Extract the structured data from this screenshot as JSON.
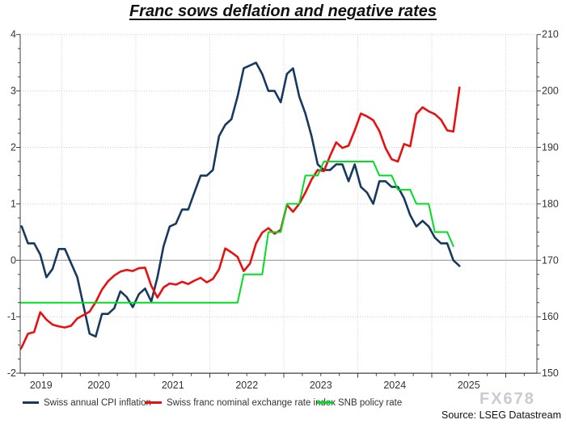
{
  "title": "Franc sows deflation and negative rates",
  "watermark": "FX678",
  "source_note": "Source: LSEG Datastream",
  "colors": {
    "cpi_line": "#17395f",
    "fx_line": "#e81010",
    "policy_line": "#00dd22",
    "gridline": "#cccccc",
    "zero_line": "#8c8c8c",
    "axis": "#404040",
    "tick_label": "#333333"
  },
  "chart_data": {
    "type": "line",
    "title": "Franc sows deflation and negative rates",
    "x_axis": {
      "year_labels": [
        "2019",
        "2020",
        "2021",
        "2022",
        "2023",
        "2024",
        "2025"
      ],
      "range_years": [
        2019.45,
        2026.45
      ]
    },
    "left_axis": {
      "range": [
        -2,
        4
      ],
      "tick_labels": [
        "4",
        "3",
        "2",
        "1",
        "0",
        "-1",
        "-2"
      ],
      "minor_step": 0.25
    },
    "right_axis": {
      "range": [
        150,
        210
      ],
      "tick_labels": [
        "210",
        "200",
        "190",
        "180",
        "170",
        "160",
        "150"
      ],
      "minor_step": 2.5
    },
    "grid": {
      "horizontal_dotted_at": [
        4,
        3,
        2,
        1,
        -1
      ],
      "vertical_dotted_years": [
        2020,
        2021,
        2022,
        2023,
        2024,
        2025,
        2026
      ],
      "solid_zero_line_at": 0
    },
    "legend_position": "bottom",
    "months": [
      "2019-05",
      "2019-06",
      "2019-07",
      "2019-08",
      "2019-09",
      "2019-10",
      "2019-11",
      "2019-12",
      "2020-01",
      "2020-02",
      "2020-03",
      "2020-04",
      "2020-05",
      "2020-06",
      "2020-07",
      "2020-08",
      "2020-09",
      "2020-10",
      "2020-11",
      "2020-12",
      "2021-01",
      "2021-02",
      "2021-03",
      "2021-04",
      "2021-05",
      "2021-06",
      "2021-07",
      "2021-08",
      "2021-09",
      "2021-10",
      "2021-11",
      "2021-12",
      "2022-01",
      "2022-02",
      "2022-03",
      "2022-04",
      "2022-05",
      "2022-06",
      "2022-07",
      "2022-08",
      "2022-09",
      "2022-10",
      "2022-11",
      "2022-12",
      "2023-01",
      "2023-02",
      "2023-03",
      "2023-04",
      "2023-05",
      "2023-06",
      "2023-07",
      "2023-08",
      "2023-09",
      "2023-10",
      "2023-11",
      "2023-12",
      "2024-01",
      "2024-02",
      "2024-03",
      "2024-04",
      "2024-05",
      "2024-06",
      "2024-07",
      "2024-08",
      "2024-09",
      "2024-10",
      "2024-11",
      "2024-12",
      "2025-01",
      "2025-02",
      "2025-03",
      "2025-04",
      "2025-05"
    ],
    "series": [
      {
        "name": "Swiss annual CPI inflation",
        "axis": "left",
        "color": "#17395f",
        "width": 2.6,
        "values": [
          0.6,
          0.6,
          0.3,
          0.3,
          0.1,
          -0.3,
          -0.15,
          0.2,
          0.2,
          -0.05,
          -0.3,
          -0.8,
          -1.3,
          -1.35,
          -0.95,
          -0.95,
          -0.85,
          -0.55,
          -0.65,
          -0.83,
          -0.6,
          -0.5,
          -0.73,
          -0.3,
          0.25,
          0.6,
          0.65,
          0.9,
          0.9,
          1.2,
          1.5,
          1.5,
          1.6,
          2.2,
          2.4,
          2.5,
          2.9,
          3.4,
          3.45,
          3.5,
          3.3,
          3.0,
          3.0,
          2.8,
          3.3,
          3.4,
          2.9,
          2.6,
          2.2,
          1.7,
          1.6,
          1.6,
          1.7,
          1.7,
          1.4,
          1.7,
          1.3,
          1.2,
          1.0,
          1.4,
          1.4,
          1.3,
          1.3,
          1.1,
          0.8,
          0.6,
          0.7,
          0.6,
          0.4,
          0.3,
          0.3,
          0.0,
          -0.1
        ]
      },
      {
        "name": "Swiss franc nominal exchange rate index",
        "axis": "right",
        "color": "#e81010",
        "width": 2.6,
        "values": [
          153.2,
          154.6,
          157.0,
          157.3,
          160.8,
          159.5,
          158.6,
          158.3,
          158.1,
          158.4,
          159.7,
          160.3,
          160.9,
          162.6,
          164.8,
          166.3,
          167.3,
          168.0,
          168.3,
          168.1,
          168.6,
          168.7,
          165.5,
          163.4,
          165.2,
          165.9,
          165.7,
          166.2,
          165.8,
          166.4,
          166.9,
          166.1,
          166.7,
          168.4,
          172.1,
          171.4,
          170.6,
          168.1,
          169.4,
          173.0,
          174.9,
          175.7,
          174.7,
          175.4,
          179.8,
          178.6,
          180.0,
          182.0,
          184.3,
          186.0,
          185.8,
          188.5,
          190.9,
          189.9,
          190.3,
          193.0,
          196.0,
          195.5,
          194.8,
          192.9,
          189.9,
          187.9,
          187.5,
          190.6,
          190.2,
          195.9,
          197.1,
          196.4,
          195.9,
          194.9,
          193.0,
          192.8,
          200.6
        ]
      },
      {
        "name": "SNB policy rate",
        "axis": "left",
        "color": "#00dd22",
        "width": 2,
        "values": [
          -0.75,
          -0.75,
          -0.75,
          -0.75,
          -0.75,
          -0.75,
          -0.75,
          -0.75,
          -0.75,
          -0.75,
          -0.75,
          -0.75,
          -0.75,
          -0.75,
          -0.75,
          -0.75,
          -0.75,
          -0.75,
          -0.75,
          -0.75,
          -0.75,
          -0.75,
          -0.75,
          -0.75,
          -0.75,
          -0.75,
          -0.75,
          -0.75,
          -0.75,
          -0.75,
          -0.75,
          -0.75,
          -0.75,
          -0.75,
          -0.75,
          -0.75,
          -0.75,
          -0.25,
          -0.25,
          -0.25,
          -0.25,
          0.5,
          0.5,
          0.5,
          1.0,
          1.0,
          1.0,
          1.5,
          1.5,
          1.5,
          1.75,
          1.75,
          1.75,
          1.75,
          1.75,
          1.75,
          1.75,
          1.75,
          1.75,
          1.5,
          1.5,
          1.5,
          1.25,
          1.25,
          1.25,
          1.0,
          1.0,
          1.0,
          0.5,
          0.5,
          0.5,
          0.25,
          null
        ]
      }
    ]
  }
}
